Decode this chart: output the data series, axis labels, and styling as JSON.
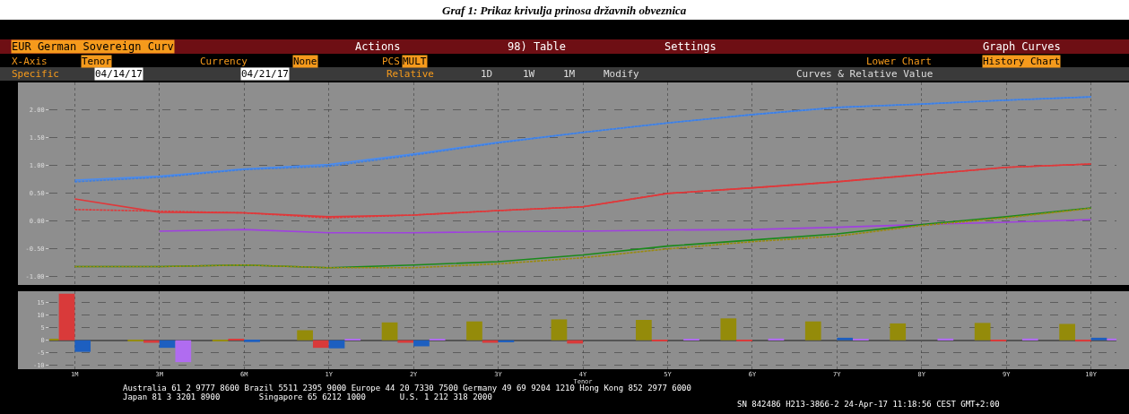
{
  "chart_data": [
    {
      "type": "line",
      "title": "Graf 1: Prikaz krivulja prinosa državnih obveznica",
      "annotations": [
        "EUR German Sovereign Curv",
        "Actions",
        "98) Table",
        "Settings",
        "Graph Curves",
        "X-Axis",
        "Tenor",
        "Currency",
        "None",
        "PCS",
        "MULT",
        "Lower Chart",
        "History Chart",
        "Specific",
        "04/14/17",
        "04/21/17",
        "Relative",
        "1D",
        "1W",
        "1M",
        "Modify",
        "Curves & Relative Value"
      ],
      "series": [
        {
          "color": "#4a8cf0",
          "line_style": "solid",
          "values": [
            0.74,
            0.81,
            0.94,
            1.02,
            1.21,
            1.42,
            1.6,
            1.77,
            1.92,
            2.05,
            2.11,
            2.18,
            2.24
          ]
        },
        {
          "color": "#3f7fe0",
          "line_style": "dashed",
          "values": [
            0.71,
            0.79,
            0.93,
            0.99,
            1.19,
            1.41,
            1.6,
            1.77,
            1.92,
            2.05,
            2.11,
            2.18,
            2.24
          ]
        },
        {
          "color": "#e0383a",
          "line_style": "solid",
          "values": [
            0.4,
            0.16,
            0.15,
            0.08,
            0.11,
            0.19,
            0.26,
            0.5,
            0.6,
            0.71,
            0.84,
            0.97,
            1.03
          ]
        },
        {
          "color": "#e0383a",
          "line_style": "dashed",
          "values": [
            0.21,
            0.18,
            0.15,
            0.06,
            0.11,
            0.19,
            0.26,
            0.5,
            0.6,
            0.71,
            0.84,
            0.97,
            1.03
          ]
        },
        {
          "color": "#a040e0",
          "line_style": "solid",
          "values": [
            null,
            -0.18,
            -0.15,
            -0.21,
            -0.21,
            -0.19,
            -0.18,
            -0.16,
            -0.15,
            -0.11,
            -0.06,
            -0.02,
            0.03
          ]
        },
        {
          "color": "#1a8a1a",
          "line_style": "solid",
          "values": [
            -0.82,
            -0.82,
            -0.79,
            -0.84,
            -0.79,
            -0.73,
            -0.61,
            -0.45,
            -0.34,
            -0.23,
            -0.06,
            0.08,
            0.24
          ]
        },
        {
          "color": "#9a8a10",
          "line_style": "dashed",
          "values": [
            -0.82,
            -0.82,
            -0.79,
            -0.84,
            -0.84,
            -0.77,
            -0.66,
            -0.5,
            -0.37,
            -0.27,
            -0.08,
            0.06,
            0.23
          ]
        }
      ],
      "ylim": [
        -1.15,
        2.5
      ],
      "yticks": [
        {
          "value": 2,
          "label": "2.00"
        },
        {
          "value": 1.5,
          "label": "1.50"
        },
        {
          "value": 1,
          "label": "1.00"
        },
        {
          "value": 0.5,
          "label": "0.50"
        },
        {
          "value": 0,
          "label": "0.00"
        },
        {
          "value": -0.5,
          "label": "-0.50"
        },
        {
          "value": -1,
          "label": "-1.00"
        }
      ],
      "grid": true,
      "tick_labels": "y",
      "marker": "none"
    },
    {
      "type": "bar",
      "xlabel": "Tenor",
      "annotations": [
        "Australia 61 2 9777 8600 Brazil 5511 2395 9000 Europe 44 20 7330 7500 Germany 49 69 9204 1210 Hong Kong 852 2977 6000",
        "Japan 81 3 3201 8900        Singapore 65 6212 1000       U.S. 1 212 318 2000",
        "SN 842486 H213-3866-2 24-Apr-17 11:18:56 CEST GMT+2:00"
      ],
      "categories": [
        "1M",
        "3M",
        "6M",
        "1Y",
        "2Y",
        "3Y",
        "4Y",
        "5Y",
        "6Y",
        "7Y",
        "8Y",
        "9Y",
        "10Y"
      ],
      "series": [
        {
          "color": "#948b0a",
          "values": [
            0.5,
            -0.3,
            -0.2,
            4,
            7.1,
            7.5,
            8.3,
            8.1,
            8.7,
            7.5,
            6.7,
            6.9,
            6.5
          ]
        },
        {
          "color": "#d93a3a",
          "values": [
            18.5,
            -1,
            0.5,
            -3,
            -1,
            -1,
            -1.3,
            -0.3,
            -0.3,
            null,
            null,
            -0.3,
            -0.5
          ]
        },
        {
          "color": "#1d5fc0",
          "values": [
            -4.6,
            -3,
            -0.7,
            -3.2,
            -2.4,
            -0.8,
            null,
            null,
            null,
            1,
            null,
            null,
            1
          ]
        },
        {
          "color": "#b06cf0",
          "values": [
            null,
            -8.7,
            null,
            0.5,
            0.5,
            null,
            null,
            0.5,
            0.7,
            0.5,
            0.7,
            0.7,
            0.7
          ]
        }
      ],
      "ylim": [
        -11.5,
        19.5
      ],
      "yticks": [
        15,
        10,
        5,
        0,
        -5,
        -10
      ],
      "grid": true
    }
  ]
}
